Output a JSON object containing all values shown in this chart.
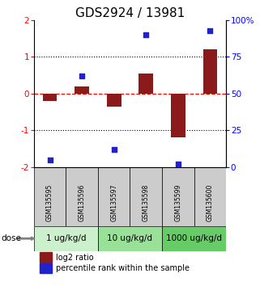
{
  "title": "GDS2924 / 13981",
  "samples": [
    "GSM135595",
    "GSM135596",
    "GSM135597",
    "GSM135598",
    "GSM135599",
    "GSM135600"
  ],
  "log2_ratio": [
    -0.2,
    0.2,
    -0.35,
    0.55,
    -1.2,
    1.2
  ],
  "percentile": [
    5,
    62,
    12,
    90,
    2,
    93
  ],
  "ylim_left": [
    -2,
    2
  ],
  "ylim_right": [
    0,
    100
  ],
  "bar_color": "#8B1A1A",
  "dot_color": "#2222CC",
  "dose_groups": [
    {
      "label": "1 ug/kg/d",
      "cols": [
        0,
        1
      ],
      "color": "#ccf0cc"
    },
    {
      "label": "10 ug/kg/d",
      "cols": [
        2,
        3
      ],
      "color": "#99e099"
    },
    {
      "label": "1000 ug/kg/d",
      "cols": [
        4,
        5
      ],
      "color": "#66cc66"
    }
  ],
  "legend_bar_label": "log2 ratio",
  "legend_dot_label": "percentile rank within the sample",
  "dose_label": "dose",
  "title_fontsize": 11,
  "tick_fontsize": 7.5,
  "label_fontsize": 7,
  "dose_fontsize": 7.5
}
